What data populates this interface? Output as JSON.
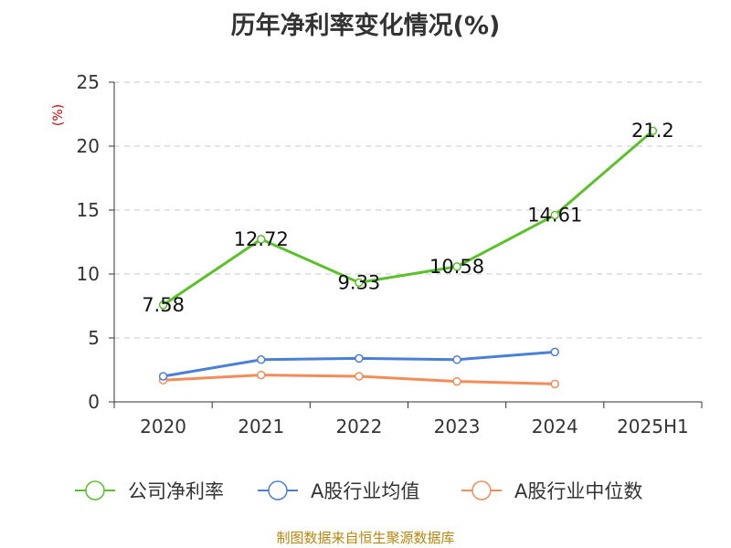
{
  "chart_data": {
    "type": "line",
    "title": "历年净利率变化情况(%)",
    "ylabel": "(%)",
    "categories": [
      "2020",
      "2021",
      "2022",
      "2023",
      "2024",
      "2025H1"
    ],
    "ylim": [
      0,
      25
    ],
    "yticks": [
      "0",
      "5",
      "10",
      "15",
      "20",
      "25"
    ],
    "grid": true,
    "legend_position": "bottom",
    "series": [
      {
        "name": "公司净利率",
        "color": "#5ac229",
        "values": [
          7.58,
          12.72,
          9.33,
          10.58,
          14.61,
          21.2
        ],
        "labels": [
          "7.58",
          "12.72",
          "9.33",
          "10.58",
          "14.61",
          "21.2"
        ]
      },
      {
        "name": "A股行业均值",
        "color": "#4a7fd8",
        "values": [
          2.0,
          3.3,
          3.4,
          3.3,
          3.9,
          null
        ]
      },
      {
        "name": "A股行业中位数",
        "color": "#f48c5a",
        "values": [
          1.7,
          2.1,
          2.0,
          1.6,
          1.4,
          null
        ]
      }
    ]
  },
  "source": "制图数据来自恒生聚源数据库"
}
